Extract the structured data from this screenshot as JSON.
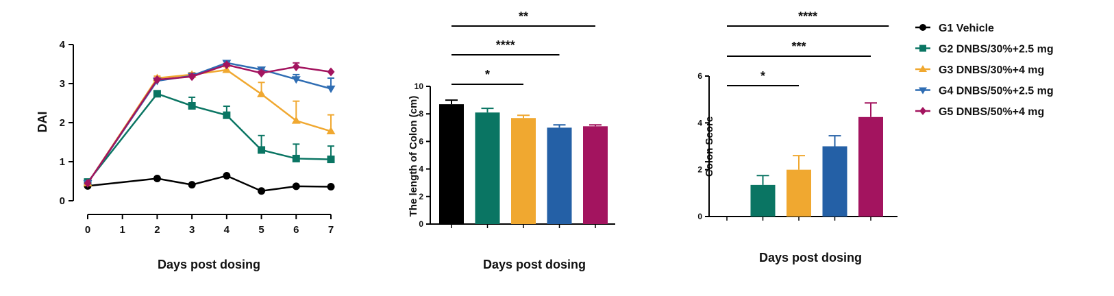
{
  "chart_data": [
    {
      "type": "line",
      "ylabel": "DAI",
      "xlabel": "Days post dosing",
      "x": [
        0,
        2,
        3,
        4,
        5,
        6,
        7
      ],
      "xticks": [
        0,
        1,
        2,
        3,
        4,
        5,
        6,
        7
      ],
      "ylim": [
        0,
        4
      ],
      "yticks": [
        0,
        1,
        2,
        3,
        4
      ],
      "series": [
        {
          "name": "G1 Vehicle",
          "color": "#000000",
          "marker": "circle",
          "values": [
            0.38,
            0.57,
            0.41,
            0.64,
            0.25,
            0.37,
            0.36
          ],
          "errors": [
            0,
            0,
            0,
            0,
            0,
            0,
            0
          ]
        },
        {
          "name": "G2 DNBS/30%+2.5 mg",
          "color": "#0a7563",
          "marker": "square",
          "values": [
            0.48,
            2.74,
            2.43,
            2.19,
            1.3,
            1.08,
            1.06
          ],
          "errors": [
            0,
            0.06,
            0.22,
            0.23,
            0.37,
            0.37,
            0.34
          ]
        },
        {
          "name": "G3 DNBS/30%+4 mg",
          "color": "#f0a830",
          "marker": "triangle-up",
          "values": [
            0.45,
            3.14,
            3.23,
            3.35,
            2.73,
            2.05,
            1.78
          ],
          "errors": [
            0,
            0.05,
            0.05,
            0.08,
            0.3,
            0.5,
            0.42
          ]
        },
        {
          "name": "G4 DNBS/50%+2.5 mg",
          "color": "#2f6db3",
          "marker": "triangle-down",
          "values": [
            0.45,
            3.07,
            3.2,
            3.53,
            3.36,
            3.11,
            2.87
          ],
          "errors": [
            0,
            0.03,
            0.04,
            0.03,
            0.05,
            0.12,
            0.27
          ]
        },
        {
          "name": "G5 DNBS/50%+4 mg",
          "color": "#a3145f",
          "marker": "diamond",
          "values": [
            0.45,
            3.1,
            3.18,
            3.48,
            3.27,
            3.43,
            3.3
          ],
          "errors": [
            0,
            0.04,
            0.05,
            0.03,
            0.05,
            0.1,
            0
          ]
        }
      ]
    },
    {
      "type": "bar",
      "ylabel": "The length of Colon (cm)",
      "xlabel": "Days post dosing",
      "categories": [
        "G1 Vehicle",
        "G2 DNBS/30%+2.5 mg",
        "G3 DNBS/30%+4 mg",
        "G4 DNBS/50%+2.5 mg",
        "G5 DNBS/50%+4 mg"
      ],
      "colors": [
        "#000000",
        "#0a7563",
        "#f0a830",
        "#2460a6",
        "#a3145f"
      ],
      "values": [
        8.7,
        8.1,
        7.7,
        7.0,
        7.1
      ],
      "errors": [
        0.3,
        0.3,
        0.2,
        0.2,
        0.1
      ],
      "ylim": [
        0,
        10
      ],
      "yticks": [
        0,
        2,
        4,
        6,
        8,
        10
      ],
      "significance": [
        {
          "from": 0,
          "to": 2,
          "label": "*"
        },
        {
          "from": 0,
          "to": 3,
          "label": "****"
        },
        {
          "from": 0,
          "to": 4,
          "label": "**"
        }
      ]
    },
    {
      "type": "bar",
      "ylabel": "Colon Score",
      "xlabel": "Days post dosing",
      "categories": [
        "G1 Vehicle",
        "G2 DNBS/30%+2.5 mg",
        "G3 DNBS/30%+4 mg",
        "G4 DNBS/50%+2.5 mg",
        "G5 DNBS/50%+4 mg"
      ],
      "colors": [
        "#000000",
        "#0a7563",
        "#f0a830",
        "#2460a6",
        "#a3145f"
      ],
      "values": [
        0,
        1.35,
        2.0,
        3.0,
        4.25
      ],
      "errors": [
        0,
        0.4,
        0.6,
        0.45,
        0.6
      ],
      "ylim": [
        0,
        6
      ],
      "yticks": [
        0,
        2,
        4,
        6
      ],
      "significance": [
        {
          "from": 0,
          "to": 2,
          "label": "*"
        },
        {
          "from": 0,
          "to": 4,
          "label": "***"
        },
        {
          "from": 0,
          "to": 5,
          "label": "****"
        }
      ]
    }
  ],
  "legend": {
    "placement": "right",
    "items": [
      {
        "label": "G1 Vehicle",
        "color": "#000000",
        "marker": "circle"
      },
      {
        "label": "G2 DNBS/30%+2.5 mg",
        "color": "#0a7563",
        "marker": "square"
      },
      {
        "label": "G3 DNBS/30%+4 mg",
        "color": "#f0a830",
        "marker": "triangle-up"
      },
      {
        "label": "G4 DNBS/50%+2.5 mg",
        "color": "#2f6db3",
        "marker": "triangle-down"
      },
      {
        "label": "G5 DNBS/50%+4 mg",
        "color": "#a3145f",
        "marker": "diamond"
      }
    ]
  }
}
